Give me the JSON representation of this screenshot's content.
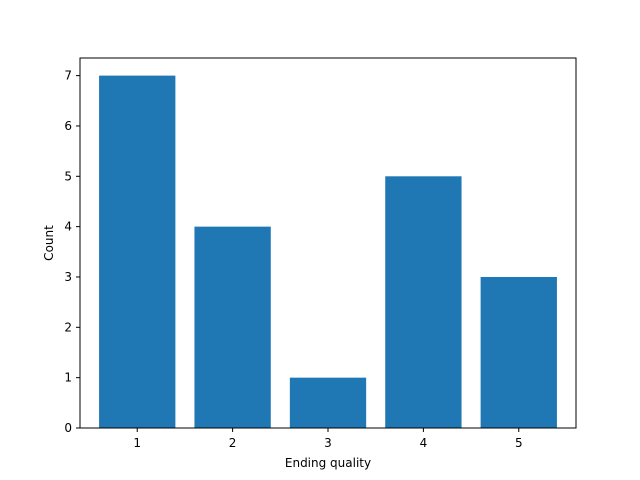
{
  "chart_data": {
    "type": "bar",
    "categories": [
      "1",
      "2",
      "3",
      "4",
      "5"
    ],
    "values": [
      7,
      4,
      1,
      5,
      3
    ],
    "title": "",
    "xlabel": "Ending quality",
    "ylabel": "Count",
    "ylim": [
      0,
      7.35
    ],
    "yticks": [
      "0",
      "1",
      "2",
      "3",
      "4",
      "5",
      "6",
      "7"
    ],
    "grid": false,
    "bar_color": "#1f77b4"
  }
}
